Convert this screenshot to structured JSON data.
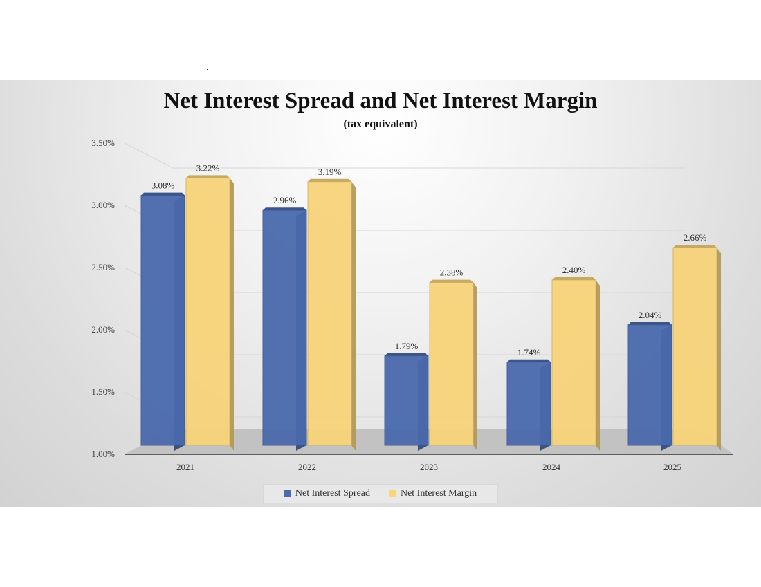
{
  "chart_data": {
    "type": "bar",
    "title": "Net Interest Spread and Net Interest Margin",
    "subtitle": "(tax equivalent)",
    "categories": [
      "2021",
      "2022",
      "2023",
      "2024",
      "2025"
    ],
    "series": [
      {
        "name": "Net Interest Spread",
        "values": [
          3.08,
          2.96,
          1.79,
          1.74,
          2.04
        ],
        "labels": [
          "3.08%",
          "2.96%",
          "1.79%",
          "1.74%",
          "2.04%"
        ],
        "color": "#4a6aad"
      },
      {
        "name": "Net Interest Margin",
        "values": [
          3.22,
          3.19,
          2.38,
          2.4,
          2.66
        ],
        "labels": [
          "3.22%",
          "3.19%",
          "2.38%",
          "2.40%",
          "2.66%"
        ],
        "color": "#f8d47a"
      }
    ],
    "ylim": [
      1.0,
      3.5
    ],
    "yticks": [
      "1.00%",
      "1.50%",
      "2.00%",
      "2.50%",
      "3.00%",
      "3.50%"
    ],
    "ytick_values": [
      1.0,
      1.5,
      2.0,
      2.5,
      3.0,
      3.5
    ],
    "legend": "bottom",
    "grid": true,
    "style": "3d-bar"
  }
}
